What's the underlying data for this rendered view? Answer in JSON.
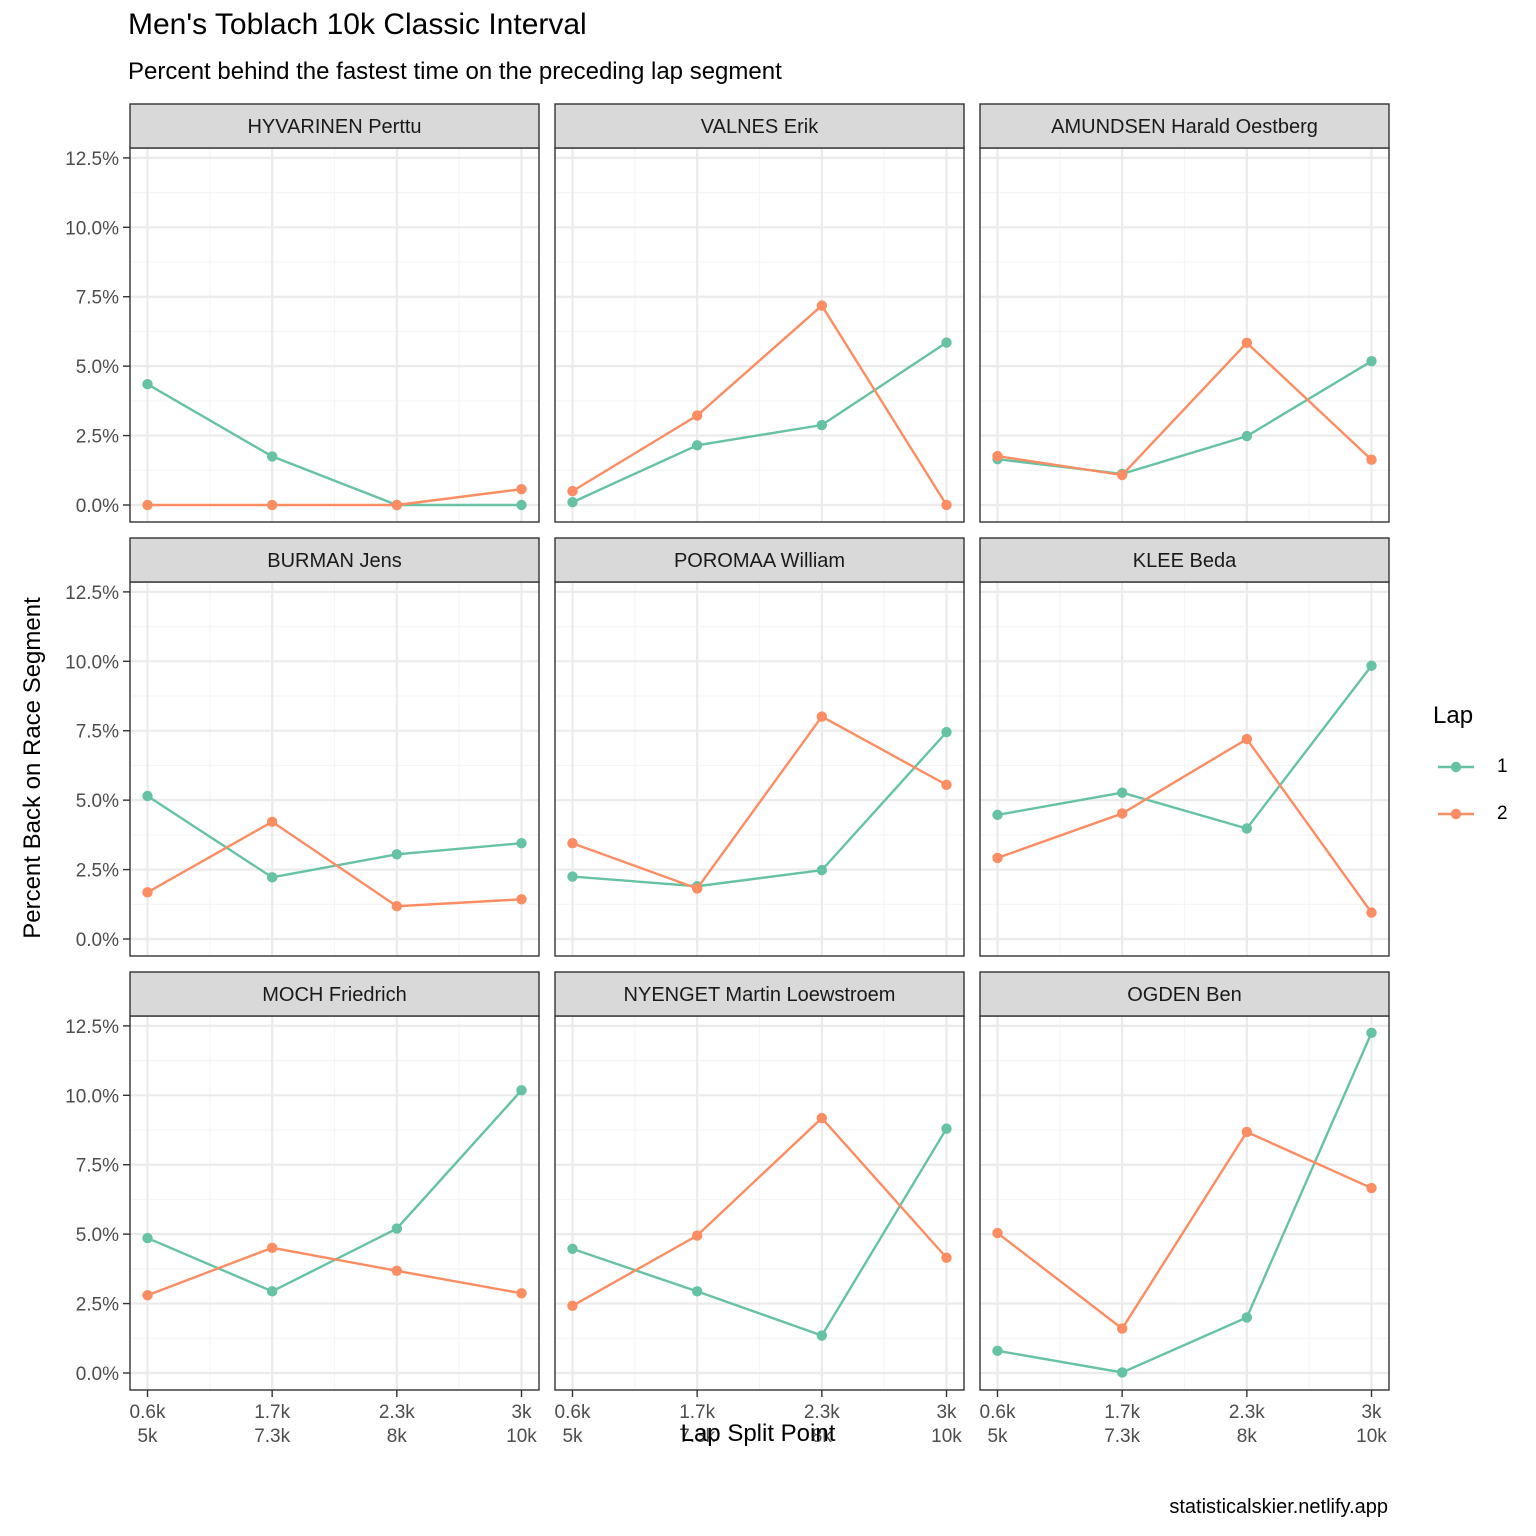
{
  "colors": {
    "lap1": "#66c2a5",
    "lap2": "#fc8d62",
    "strip_bg": "#d9d9d9",
    "grid_major": "#ebebeb",
    "grid_minor": "#f5f5f5",
    "panel_border": "#333333"
  },
  "chart_data": {
    "type": "line",
    "title": "Men's Toblach 10k Classic Interval",
    "subtitle": "Percent behind the fastest time on the preceding lap segment",
    "xlabel": "Lap Split Point",
    "ylabel": "Percent Back on Race Segment",
    "caption": "statisticalskier.netlify.app",
    "legend": {
      "title": "Lap",
      "position": "right",
      "entries": [
        "1",
        "2"
      ]
    },
    "x_ticks": [
      {
        "line1": "0.6k",
        "line2": "5k"
      },
      {
        "line1": "1.7k",
        "line2": "7.3k"
      },
      {
        "line1": "2.3k",
        "line2": "8k"
      },
      {
        "line1": "3k",
        "line2": "10k"
      }
    ],
    "y_ticks": [
      "0.0%",
      "2.5%",
      "5.0%",
      "7.5%",
      "10.0%",
      "12.5%"
    ],
    "y_tick_values": [
      0,
      2.5,
      5,
      7.5,
      10,
      12.5
    ],
    "ylim": [
      0,
      12.5
    ],
    "grid": true,
    "panels": [
      {
        "name": "HYVARINEN Perttu",
        "series": [
          {
            "name": "1",
            "values": [
              4.35,
              1.75,
              0.0,
              0.0
            ]
          },
          {
            "name": "2",
            "values": [
              0.0,
              0.0,
              0.0,
              0.57
            ]
          }
        ]
      },
      {
        "name": "VALNES Erik",
        "series": [
          {
            "name": "1",
            "values": [
              0.1,
              2.15,
              2.88,
              5.85
            ]
          },
          {
            "name": "2",
            "values": [
              0.5,
              3.22,
              7.18,
              0.0
            ]
          }
        ]
      },
      {
        "name": "AMUNDSEN Harald Oestberg",
        "series": [
          {
            "name": "1",
            "values": [
              1.65,
              1.12,
              2.48,
              5.18
            ]
          },
          {
            "name": "2",
            "values": [
              1.76,
              1.08,
              5.84,
              1.63
            ]
          }
        ]
      },
      {
        "name": "BURMAN Jens",
        "series": [
          {
            "name": "1",
            "values": [
              5.15,
              2.22,
              3.05,
              3.45
            ]
          },
          {
            "name": "2",
            "values": [
              1.68,
              4.22,
              1.18,
              1.43
            ]
          }
        ]
      },
      {
        "name": "POROMAA William",
        "series": [
          {
            "name": "1",
            "values": [
              2.25,
              1.9,
              2.48,
              7.45
            ]
          },
          {
            "name": "2",
            "values": [
              3.45,
              1.82,
              8.01,
              5.55
            ]
          }
        ]
      },
      {
        "name": "KLEE Beda",
        "series": [
          {
            "name": "1",
            "values": [
              4.47,
              5.27,
              3.98,
              9.84
            ]
          },
          {
            "name": "2",
            "values": [
              2.92,
              4.52,
              7.2,
              0.95
            ]
          }
        ]
      },
      {
        "name": "MOCH Friedrich",
        "series": [
          {
            "name": "1",
            "values": [
              4.86,
              2.94,
              5.2,
              10.18
            ]
          },
          {
            "name": "2",
            "values": [
              2.8,
              4.51,
              3.68,
              2.87
            ]
          }
        ]
      },
      {
        "name": "NYENGET Martin Loewstroem",
        "series": [
          {
            "name": "1",
            "values": [
              4.47,
              2.94,
              1.35,
              8.8
            ]
          },
          {
            "name": "2",
            "values": [
              2.42,
              4.95,
              9.18,
              4.15
            ]
          }
        ]
      },
      {
        "name": "OGDEN Ben",
        "series": [
          {
            "name": "1",
            "values": [
              0.8,
              0.02,
              2.0,
              12.25
            ]
          },
          {
            "name": "2",
            "values": [
              5.04,
              1.6,
              8.68,
              6.66
            ]
          }
        ]
      }
    ]
  }
}
